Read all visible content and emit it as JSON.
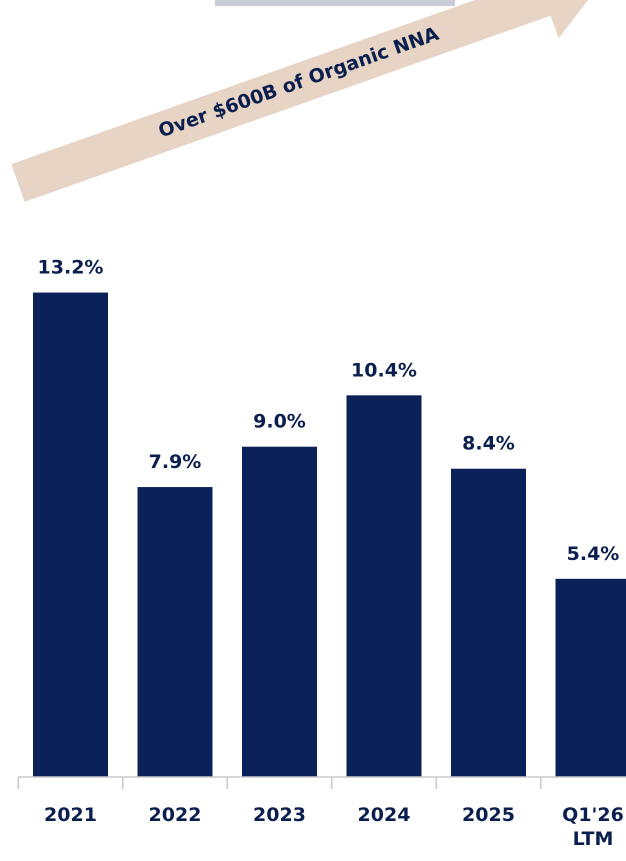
{
  "chart_data": {
    "type": "bar",
    "categories": [
      "2021",
      "2022",
      "2023",
      "2024",
      "2025",
      "Q1'26 LTM"
    ],
    "category_lines": [
      [
        "2021"
      ],
      [
        "2022"
      ],
      [
        "2023"
      ],
      [
        "2024"
      ],
      [
        "2025"
      ],
      [
        "Q1'26",
        "LTM"
      ]
    ],
    "values": [
      13.2,
      7.9,
      9.0,
      10.4,
      8.4,
      5.4
    ],
    "value_labels": [
      "13.2%",
      "7.9%",
      "9.0%",
      "10.4%",
      "8.4%",
      "5.4%"
    ],
    "bar_color": "#0b2159",
    "label_color": "#0b1f4e",
    "title": "",
    "xlabel": "",
    "ylabel": "",
    "annotation": {
      "text": "Over $600B of Organic NNA",
      "color": "#e7d4c4"
    }
  }
}
